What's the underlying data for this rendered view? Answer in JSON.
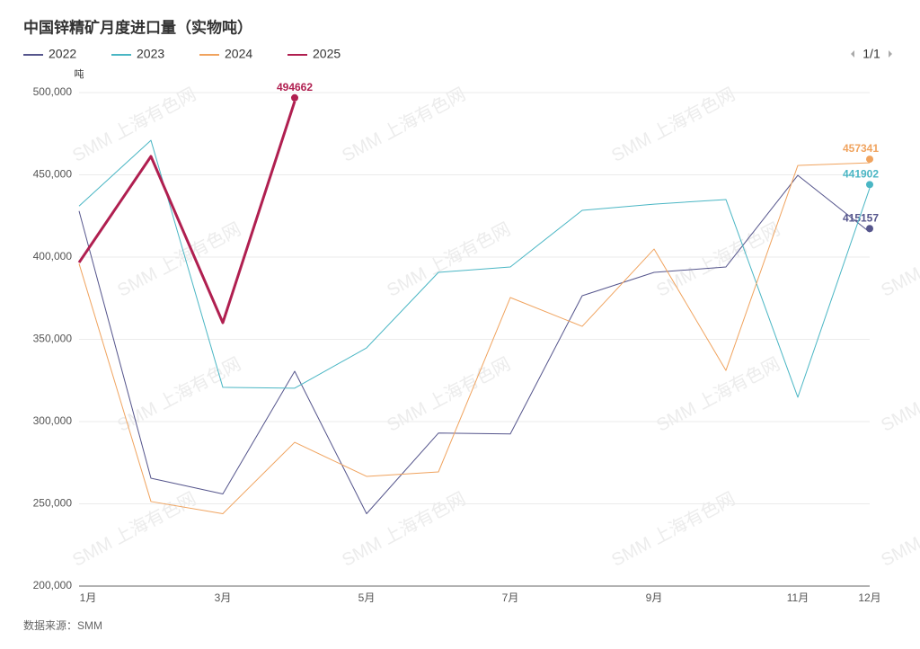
{
  "chart_data": {
    "type": "line",
    "title": "中国锌精矿月度进口量（实物吨）",
    "y_unit": "吨",
    "page_indicator": "1/1",
    "source": "数据来源：SMM",
    "watermark": "SMM 上海有色网",
    "categories": [
      "1月",
      null,
      "3月",
      null,
      "5月",
      null,
      "7月",
      null,
      "9月",
      null,
      "11月",
      "12月"
    ],
    "series": [
      {
        "name": "2022",
        "color": "#55558c",
        "width": 1,
        "values": [
          428000,
          265600,
          256000,
          330600,
          244000,
          293000,
          292500,
          376500,
          390700,
          394000,
          449700,
          415157
        ]
      },
      {
        "name": "2023",
        "color": "#4ab6c4",
        "width": 1,
        "values": [
          431000,
          471000,
          320800,
          320300,
          344800,
          390700,
          394000,
          428400,
          432200,
          435000,
          314800,
          441902
        ]
      },
      {
        "name": "2024",
        "color": "#f0a35e",
        "width": 1,
        "values": [
          396000,
          251400,
          244000,
          287400,
          266700,
          269400,
          375400,
          357900,
          404900,
          331100,
          455700,
          457341
        ]
      },
      {
        "name": "2025",
        "color": "#b01f50",
        "width": 3,
        "values": [
          396700,
          461200,
          360100,
          494662,
          null,
          null,
          null,
          null,
          null,
          null,
          null,
          null
        ]
      }
    ],
    "ylim": [
      200000,
      500000
    ],
    "yticks": [
      {
        "value": 200000,
        "label": "200,000"
      },
      {
        "value": 250000,
        "label": "250,000"
      },
      {
        "value": 300000,
        "label": "300,000"
      },
      {
        "value": 350000,
        "label": "350,000"
      },
      {
        "value": 400000,
        "label": "400,000"
      },
      {
        "value": 450000,
        "label": "450,000"
      },
      {
        "value": 500000,
        "label": "500,000"
      }
    ],
    "grid": true
  }
}
